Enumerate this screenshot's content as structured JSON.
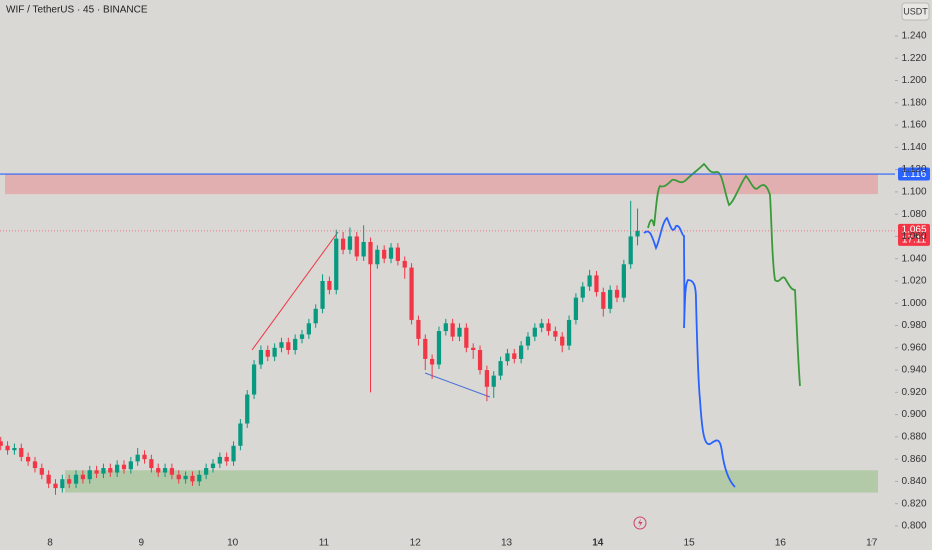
{
  "header": {
    "title": "WIF / TetherUS · 45 · BINANCE",
    "currency": "USDT"
  },
  "chart_data": {
    "type": "candlestick",
    "x": [
      7.46,
      7.535,
      7.61,
      7.685,
      7.76,
      7.835,
      7.91,
      7.985,
      8.06,
      8.135,
      8.21,
      8.285,
      8.36,
      8.435,
      8.51,
      8.585,
      8.66,
      8.735,
      8.81,
      8.885,
      8.96,
      9.035,
      9.11,
      9.185,
      9.26,
      9.335,
      9.41,
      9.485,
      9.56,
      9.635,
      9.71,
      9.785,
      9.86,
      9.935,
      10.01,
      10.085,
      10.16,
      10.235,
      10.31,
      10.385,
      10.46,
      10.535,
      10.61,
      10.685,
      10.76,
      10.835,
      10.91,
      10.985,
      11.06,
      11.135,
      11.21,
      11.285,
      11.36,
      11.435,
      11.51,
      11.585,
      11.66,
      11.735,
      11.81,
      11.885,
      11.96,
      12.035,
      12.11,
      12.185,
      12.26,
      12.335,
      12.41,
      12.485,
      12.56,
      12.635,
      12.71,
      12.785,
      12.86,
      12.935,
      13.01,
      13.085,
      13.16,
      13.235,
      13.31,
      13.385,
      13.46,
      13.535,
      13.61,
      13.685,
      13.76,
      13.835,
      13.91,
      13.985,
      14.06,
      14.135,
      14.21,
      14.285,
      14.36,
      14.435
    ],
    "open": [
      0.876,
      0.872,
      0.868,
      0.87,
      0.862,
      0.858,
      0.852,
      0.846,
      0.838,
      0.834,
      0.842,
      0.838,
      0.846,
      0.842,
      0.85,
      0.847,
      0.852,
      0.848,
      0.855,
      0.851,
      0.858,
      0.864,
      0.86,
      0.852,
      0.848,
      0.852,
      0.846,
      0.842,
      0.845,
      0.84,
      0.846,
      0.852,
      0.856,
      0.862,
      0.858,
      0.872,
      0.892,
      0.918,
      0.945,
      0.958,
      0.952,
      0.96,
      0.965,
      0.958,
      0.968,
      0.972,
      0.982,
      0.995,
      1.02,
      1.012,
      1.058,
      1.048,
      1.06,
      1.042,
      1.055,
      1.035,
      1.048,
      1.04,
      1.05,
      1.038,
      1.032,
      0.985,
      0.968,
      0.95,
      0.945,
      0.975,
      0.982,
      0.97,
      0.978,
      0.96,
      0.958,
      0.94,
      0.925,
      0.935,
      0.948,
      0.955,
      0.95,
      0.962,
      0.97,
      0.978,
      0.982,
      0.975,
      0.97,
      0.962,
      0.985,
      1.005,
      1.015,
      1.025,
      1.01,
      0.995,
      1.012,
      1.005,
      1.035,
      1.06
    ],
    "high": [
      0.88,
      0.876,
      0.874,
      0.874,
      0.866,
      0.862,
      0.856,
      0.85,
      0.842,
      0.846,
      0.846,
      0.85,
      0.85,
      0.854,
      0.854,
      0.856,
      0.856,
      0.859,
      0.859,
      0.862,
      0.87,
      0.868,
      0.864,
      0.856,
      0.856,
      0.856,
      0.85,
      0.849,
      0.849,
      0.85,
      0.856,
      0.86,
      0.866,
      0.866,
      0.876,
      0.896,
      0.922,
      0.949,
      0.962,
      0.962,
      0.964,
      0.969,
      0.969,
      0.972,
      0.976,
      0.986,
      0.999,
      1.026,
      1.024,
      1.066,
      1.064,
      1.068,
      1.064,
      1.07,
      1.059,
      1.052,
      1.052,
      1.054,
      1.054,
      1.042,
      1.036,
      0.989,
      0.972,
      0.954,
      0.979,
      0.986,
      0.986,
      0.982,
      0.982,
      0.964,
      0.962,
      0.944,
      0.939,
      0.952,
      0.959,
      0.959,
      0.966,
      0.974,
      0.982,
      0.986,
      0.986,
      0.979,
      0.974,
      0.989,
      1.009,
      1.019,
      1.03,
      1.029,
      1.014,
      1.016,
      1.016,
      1.039,
      1.092,
      1.085
    ],
    "low": [
      0.868,
      0.864,
      0.864,
      0.858,
      0.854,
      0.848,
      0.842,
      0.834,
      0.828,
      0.83,
      0.834,
      0.834,
      0.838,
      0.838,
      0.843,
      0.843,
      0.844,
      0.844,
      0.847,
      0.847,
      0.854,
      0.856,
      0.848,
      0.844,
      0.844,
      0.842,
      0.838,
      0.838,
      0.836,
      0.836,
      0.842,
      0.848,
      0.852,
      0.854,
      0.854,
      0.868,
      0.888,
      0.914,
      0.941,
      0.948,
      0.948,
      0.956,
      0.954,
      0.954,
      0.964,
      0.968,
      0.978,
      0.991,
      1.008,
      1.008,
      1.044,
      1.044,
      1.038,
      1.038,
      0.92,
      1.031,
      1.036,
      1.036,
      1.034,
      1.022,
      0.981,
      0.962,
      0.94,
      0.932,
      0.941,
      0.971,
      0.966,
      0.966,
      0.956,
      0.95,
      0.936,
      0.912,
      0.915,
      0.931,
      0.944,
      0.946,
      0.946,
      0.958,
      0.966,
      0.974,
      0.971,
      0.966,
      0.956,
      0.958,
      0.981,
      1.001,
      1.011,
      1.006,
      0.988,
      0.991,
      1.001,
      1.001,
      1.031,
      1.052
    ],
    "close": [
      0.872,
      0.868,
      0.87,
      0.862,
      0.858,
      0.852,
      0.846,
      0.838,
      0.834,
      0.842,
      0.838,
      0.846,
      0.842,
      0.85,
      0.847,
      0.852,
      0.848,
      0.855,
      0.851,
      0.858,
      0.864,
      0.86,
      0.852,
      0.848,
      0.852,
      0.846,
      0.842,
      0.845,
      0.84,
      0.846,
      0.852,
      0.856,
      0.862,
      0.858,
      0.872,
      0.892,
      0.918,
      0.945,
      0.958,
      0.952,
      0.96,
      0.965,
      0.958,
      0.968,
      0.972,
      0.982,
      0.995,
      1.02,
      1.012,
      1.058,
      1.048,
      1.06,
      1.042,
      1.055,
      1.035,
      1.048,
      1.04,
      1.05,
      1.038,
      1.032,
      0.985,
      0.968,
      0.95,
      0.945,
      0.975,
      0.982,
      0.97,
      0.978,
      0.96,
      0.958,
      0.94,
      0.925,
      0.935,
      0.948,
      0.955,
      0.95,
      0.962,
      0.97,
      0.978,
      0.982,
      0.975,
      0.97,
      0.962,
      0.985,
      1.005,
      1.015,
      1.025,
      1.01,
      0.995,
      1.012,
      1.005,
      1.035,
      1.06,
      1.065
    ],
    "up_color": "#089981",
    "down_color": "#f23645",
    "xlim": [
      7.452,
      17.255
    ],
    "xticks": [
      8,
      9,
      10,
      11,
      12,
      13,
      14,
      15,
      16,
      17
    ],
    "highlight_xtick": 14,
    "ylim": [
      0.7874,
      1.2723
    ],
    "yticks": [
      {
        "value": 0.8,
        "label": "0.800"
      },
      {
        "value": 0.82,
        "label": "0.820"
      },
      {
        "value": 0.84,
        "label": "0.840"
      },
      {
        "value": 0.86,
        "label": "0.860"
      },
      {
        "value": 0.88,
        "label": "0.880"
      },
      {
        "value": 0.9,
        "label": "0.900"
      },
      {
        "value": 0.92,
        "label": "0.920"
      },
      {
        "value": 0.94,
        "label": "0.940"
      },
      {
        "value": 0.96,
        "label": "0.960"
      },
      {
        "value": 0.98,
        "label": "0.980"
      },
      {
        "value": 1.0,
        "label": "1.000"
      },
      {
        "value": 1.02,
        "label": "1.020"
      },
      {
        "value": 1.04,
        "label": "1.040"
      },
      {
        "value": 1.06,
        "label": "1.060"
      },
      {
        "value": 1.08,
        "label": "1.080"
      },
      {
        "value": 1.1,
        "label": "1.100"
      },
      {
        "value": 1.12,
        "label": "1.120"
      },
      {
        "value": 1.14,
        "label": "1.140"
      },
      {
        "value": 1.16,
        "label": "1.160"
      },
      {
        "value": 1.18,
        "label": "1.180"
      },
      {
        "value": 1.2,
        "label": "1.200"
      },
      {
        "value": 1.22,
        "label": "1.220"
      },
      {
        "value": 1.24,
        "label": "1.240"
      }
    ],
    "zones": [
      {
        "from": 1.098,
        "to": 1.116,
        "color": "#e2a8a8"
      },
      {
        "from": 0.83,
        "to": 0.85,
        "color": "#aac8a0"
      }
    ],
    "horizontal_line": {
      "value": 1.116,
      "label": "1.116",
      "color": "#2962ff"
    },
    "last_price": {
      "value": 1.065,
      "label": "1.065",
      "countdown": "17:11",
      "color": "#f23645"
    }
  }
}
